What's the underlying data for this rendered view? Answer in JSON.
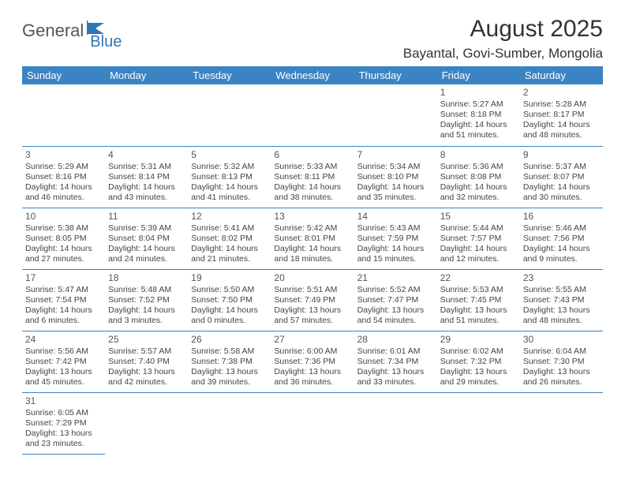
{
  "logo": {
    "text1": "General",
    "text2": "Blue"
  },
  "header": {
    "title": "August 2025",
    "location": "Bayantal, Govi-Sumber, Mongolia"
  },
  "calendar": {
    "day_names": [
      "Sunday",
      "Monday",
      "Tuesday",
      "Wednesday",
      "Thursday",
      "Friday",
      "Saturday"
    ],
    "header_bg": "#3b84c4",
    "header_fg": "#ffffff",
    "border_color": "#3b84c4",
    "text_color": "#444444",
    "weeks": [
      [
        null,
        null,
        null,
        null,
        null,
        {
          "n": "1",
          "sunrise": "Sunrise: 5:27 AM",
          "sunset": "Sunset: 8:18 PM",
          "daylight": "Daylight: 14 hours and 51 minutes."
        },
        {
          "n": "2",
          "sunrise": "Sunrise: 5:28 AM",
          "sunset": "Sunset: 8:17 PM",
          "daylight": "Daylight: 14 hours and 48 minutes."
        }
      ],
      [
        {
          "n": "3",
          "sunrise": "Sunrise: 5:29 AM",
          "sunset": "Sunset: 8:16 PM",
          "daylight": "Daylight: 14 hours and 46 minutes."
        },
        {
          "n": "4",
          "sunrise": "Sunrise: 5:31 AM",
          "sunset": "Sunset: 8:14 PM",
          "daylight": "Daylight: 14 hours and 43 minutes."
        },
        {
          "n": "5",
          "sunrise": "Sunrise: 5:32 AM",
          "sunset": "Sunset: 8:13 PM",
          "daylight": "Daylight: 14 hours and 41 minutes."
        },
        {
          "n": "6",
          "sunrise": "Sunrise: 5:33 AM",
          "sunset": "Sunset: 8:11 PM",
          "daylight": "Daylight: 14 hours and 38 minutes."
        },
        {
          "n": "7",
          "sunrise": "Sunrise: 5:34 AM",
          "sunset": "Sunset: 8:10 PM",
          "daylight": "Daylight: 14 hours and 35 minutes."
        },
        {
          "n": "8",
          "sunrise": "Sunrise: 5:36 AM",
          "sunset": "Sunset: 8:08 PM",
          "daylight": "Daylight: 14 hours and 32 minutes."
        },
        {
          "n": "9",
          "sunrise": "Sunrise: 5:37 AM",
          "sunset": "Sunset: 8:07 PM",
          "daylight": "Daylight: 14 hours and 30 minutes."
        }
      ],
      [
        {
          "n": "10",
          "sunrise": "Sunrise: 5:38 AM",
          "sunset": "Sunset: 8:05 PM",
          "daylight": "Daylight: 14 hours and 27 minutes."
        },
        {
          "n": "11",
          "sunrise": "Sunrise: 5:39 AM",
          "sunset": "Sunset: 8:04 PM",
          "daylight": "Daylight: 14 hours and 24 minutes."
        },
        {
          "n": "12",
          "sunrise": "Sunrise: 5:41 AM",
          "sunset": "Sunset: 8:02 PM",
          "daylight": "Daylight: 14 hours and 21 minutes."
        },
        {
          "n": "13",
          "sunrise": "Sunrise: 5:42 AM",
          "sunset": "Sunset: 8:01 PM",
          "daylight": "Daylight: 14 hours and 18 minutes."
        },
        {
          "n": "14",
          "sunrise": "Sunrise: 5:43 AM",
          "sunset": "Sunset: 7:59 PM",
          "daylight": "Daylight: 14 hours and 15 minutes."
        },
        {
          "n": "15",
          "sunrise": "Sunrise: 5:44 AM",
          "sunset": "Sunset: 7:57 PM",
          "daylight": "Daylight: 14 hours and 12 minutes."
        },
        {
          "n": "16",
          "sunrise": "Sunrise: 5:46 AM",
          "sunset": "Sunset: 7:56 PM",
          "daylight": "Daylight: 14 hours and 9 minutes."
        }
      ],
      [
        {
          "n": "17",
          "sunrise": "Sunrise: 5:47 AM",
          "sunset": "Sunset: 7:54 PM",
          "daylight": "Daylight: 14 hours and 6 minutes."
        },
        {
          "n": "18",
          "sunrise": "Sunrise: 5:48 AM",
          "sunset": "Sunset: 7:52 PM",
          "daylight": "Daylight: 14 hours and 3 minutes."
        },
        {
          "n": "19",
          "sunrise": "Sunrise: 5:50 AM",
          "sunset": "Sunset: 7:50 PM",
          "daylight": "Daylight: 14 hours and 0 minutes."
        },
        {
          "n": "20",
          "sunrise": "Sunrise: 5:51 AM",
          "sunset": "Sunset: 7:49 PM",
          "daylight": "Daylight: 13 hours and 57 minutes."
        },
        {
          "n": "21",
          "sunrise": "Sunrise: 5:52 AM",
          "sunset": "Sunset: 7:47 PM",
          "daylight": "Daylight: 13 hours and 54 minutes."
        },
        {
          "n": "22",
          "sunrise": "Sunrise: 5:53 AM",
          "sunset": "Sunset: 7:45 PM",
          "daylight": "Daylight: 13 hours and 51 minutes."
        },
        {
          "n": "23",
          "sunrise": "Sunrise: 5:55 AM",
          "sunset": "Sunset: 7:43 PM",
          "daylight": "Daylight: 13 hours and 48 minutes."
        }
      ],
      [
        {
          "n": "24",
          "sunrise": "Sunrise: 5:56 AM",
          "sunset": "Sunset: 7:42 PM",
          "daylight": "Daylight: 13 hours and 45 minutes."
        },
        {
          "n": "25",
          "sunrise": "Sunrise: 5:57 AM",
          "sunset": "Sunset: 7:40 PM",
          "daylight": "Daylight: 13 hours and 42 minutes."
        },
        {
          "n": "26",
          "sunrise": "Sunrise: 5:58 AM",
          "sunset": "Sunset: 7:38 PM",
          "daylight": "Daylight: 13 hours and 39 minutes."
        },
        {
          "n": "27",
          "sunrise": "Sunrise: 6:00 AM",
          "sunset": "Sunset: 7:36 PM",
          "daylight": "Daylight: 13 hours and 36 minutes."
        },
        {
          "n": "28",
          "sunrise": "Sunrise: 6:01 AM",
          "sunset": "Sunset: 7:34 PM",
          "daylight": "Daylight: 13 hours and 33 minutes."
        },
        {
          "n": "29",
          "sunrise": "Sunrise: 6:02 AM",
          "sunset": "Sunset: 7:32 PM",
          "daylight": "Daylight: 13 hours and 29 minutes."
        },
        {
          "n": "30",
          "sunrise": "Sunrise: 6:04 AM",
          "sunset": "Sunset: 7:30 PM",
          "daylight": "Daylight: 13 hours and 26 minutes."
        }
      ],
      [
        {
          "n": "31",
          "sunrise": "Sunrise: 6:05 AM",
          "sunset": "Sunset: 7:29 PM",
          "daylight": "Daylight: 13 hours and 23 minutes."
        },
        null,
        null,
        null,
        null,
        null,
        null
      ]
    ]
  }
}
